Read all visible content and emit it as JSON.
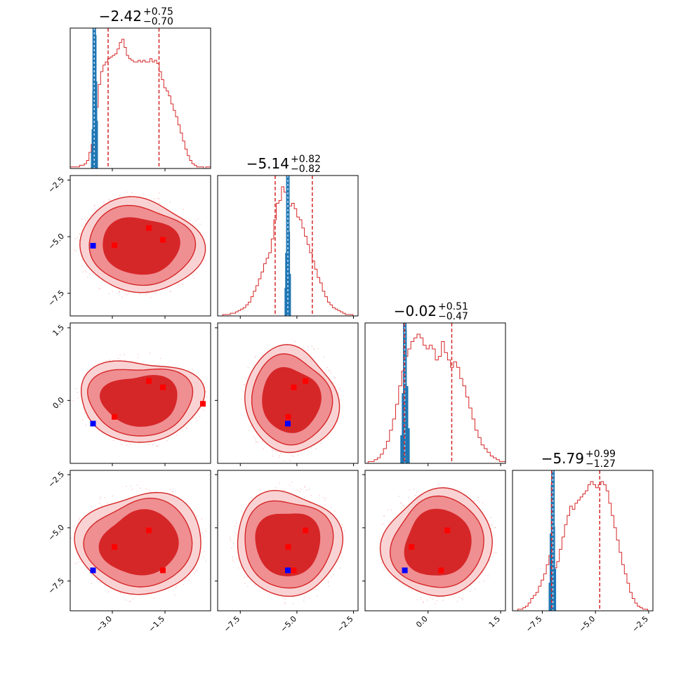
{
  "chart_data": {
    "type": "corner",
    "parameters": [
      {
        "range": [
          -4.2,
          -0.2
        ],
        "ticks": [
          -3.0,
          -1.5
        ],
        "tick_labels": [
          "−3.0",
          "−1.5"
        ],
        "title": {
          "median": "−2.42",
          "plus": "+0.75",
          "minus": "−0.70"
        },
        "median": -2.42,
        "q_low": -3.12,
        "q_high": -1.67,
        "truth_band": [
          -3.55,
          -3.48
        ]
      },
      {
        "range": [
          -8.5,
          -2.3
        ],
        "ticks": [
          -7.5,
          -5.0,
          -2.5
        ],
        "tick_labels": [
          "−7.5",
          "−5.0",
          "−2.5"
        ],
        "title": {
          "median": "−5.14",
          "plus": "+0.82",
          "minus": "−0.82"
        },
        "median": -5.14,
        "q_low": -5.96,
        "q_high": -4.32,
        "truth_band": [
          -5.45,
          -5.35
        ]
      },
      {
        "range": [
          -1.3,
          1.6
        ],
        "ticks": [
          0.0,
          1.5
        ],
        "tick_labels": [
          "0.0",
          "1.5"
        ],
        "title": {
          "median": "−0.02",
          "plus": "+0.51",
          "minus": "−0.47"
        },
        "median": -0.02,
        "q_low": -0.49,
        "q_high": 0.49,
        "truth_band": [
          -0.52,
          -0.44
        ]
      },
      {
        "range": [
          -8.9,
          -2.3
        ],
        "ticks": [
          -7.5,
          -5.0,
          -2.5
        ],
        "tick_labels": [
          "−7.5",
          "−5.0",
          "−2.5"
        ],
        "title": {
          "median": "−5.79",
          "plus": "+0.99",
          "minus": "−1.27"
        },
        "median": -5.79,
        "q_low": -7.06,
        "q_high": -4.8,
        "truth_band": [
          -7.1,
          -6.9
        ]
      }
    ],
    "red_points": [
      [
        -2.94,
        -5.38,
        -0.34,
        -5.9
      ],
      [
        -1.96,
        -4.62,
        0.4,
        -5.12
      ],
      [
        -1.56,
        -5.14,
        0.27,
        -7.0
      ],
      [
        -0.42,
        null,
        -0.07,
        null
      ]
    ],
    "blue_point": [
      -3.55,
      -5.4,
      -0.48,
      -7.0
    ],
    "hist_red": [
      [
        1,
        1,
        1,
        1,
        2,
        2,
        3,
        5,
        10,
        15,
        24,
        38,
        52,
        60,
        64,
        66,
        68,
        69,
        70,
        71,
        74,
        78,
        80,
        75,
        70,
        68,
        67,
        66,
        66,
        67,
        66,
        67,
        66,
        66,
        68,
        66,
        67,
        65,
        60,
        55,
        50,
        48,
        45,
        40,
        36,
        32,
        27,
        22,
        17,
        12,
        8,
        5,
        3,
        2,
        1,
        1,
        1,
        0,
        1,
        1
      ],
      [
        0,
        0,
        1,
        1,
        1,
        2,
        2,
        3,
        4,
        5,
        6,
        8,
        10,
        14,
        18,
        22,
        27,
        32,
        38,
        42,
        46,
        56,
        70,
        82,
        84,
        94,
        90,
        85,
        80,
        82,
        78,
        72,
        70,
        64,
        58,
        52,
        46,
        40,
        34,
        28,
        24,
        18,
        14,
        10,
        8,
        6,
        5,
        4,
        3,
        2,
        1,
        1,
        1,
        0,
        0
      ],
      [
        0,
        1,
        1,
        2,
        3,
        5,
        8,
        12,
        18,
        24,
        32,
        42,
        50,
        58,
        62,
        66,
        68,
        70,
        68,
        64,
        62,
        64,
        62,
        56,
        58,
        66,
        60,
        56,
        52,
        55,
        52,
        46,
        42,
        36,
        30,
        24,
        18,
        14,
        10,
        8,
        6,
        4,
        3,
        2,
        1,
        1
      ],
      [
        0,
        0,
        1,
        1,
        2,
        3,
        5,
        8,
        10,
        12,
        16,
        20,
        24,
        30,
        36,
        32,
        28,
        32,
        40,
        48,
        56,
        62,
        68,
        66,
        70,
        72,
        74,
        76,
        78,
        82,
        84,
        82,
        80,
        82,
        84,
        82,
        78,
        70,
        62,
        54,
        46,
        38,
        30,
        24,
        18,
        12,
        8,
        5,
        3,
        2,
        1,
        1,
        0,
        0
      ]
    ],
    "hist_blue": [
      [
        [
          -3.58,
          0.12
        ],
        [
          -3.56,
          0.28
        ],
        [
          -3.54,
          0.55
        ],
        [
          -3.52,
          0.72
        ],
        [
          -3.5,
          0.88
        ],
        [
          -3.48,
          0.95
        ],
        [
          -3.46,
          0.62
        ],
        [
          -3.44,
          0.34
        ]
      ],
      [
        [
          -5.5,
          0.2
        ],
        [
          -5.47,
          0.45
        ],
        [
          -5.43,
          0.75
        ],
        [
          -5.39,
          0.95
        ],
        [
          -5.35,
          0.6
        ],
        [
          -5.31,
          0.3
        ]
      ],
      [
        [
          -0.55,
          0.2
        ],
        [
          -0.52,
          0.5
        ],
        [
          -0.49,
          0.85
        ],
        [
          -0.46,
          0.95
        ],
        [
          -0.43,
          0.55
        ],
        [
          -0.4,
          0.25
        ]
      ],
      [
        [
          -7.15,
          0.2
        ],
        [
          -7.1,
          0.55
        ],
        [
          -7.05,
          0.9
        ],
        [
          -7.0,
          0.95
        ],
        [
          -6.95,
          0.6
        ],
        [
          -6.9,
          0.3
        ]
      ]
    ]
  }
}
